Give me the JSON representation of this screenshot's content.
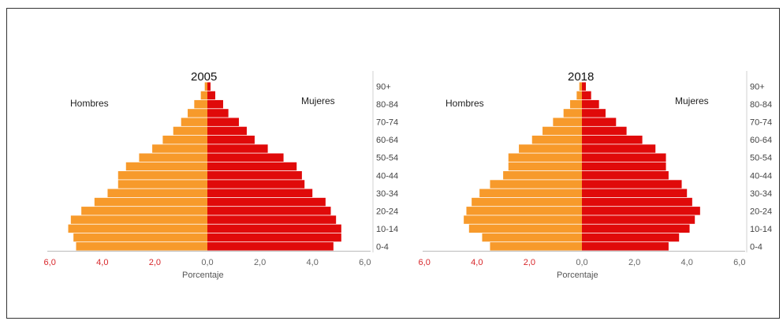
{
  "chart_data": [
    {
      "type": "bar",
      "title": "2005",
      "left_label": "Hombres",
      "right_label": "Mujeres",
      "xlabel": "Porcentaje",
      "xlim": [
        -6,
        6
      ],
      "x_ticks": [
        "6,0",
        "4,0",
        "2,0",
        "0,0",
        "2,0",
        "4,0",
        "6,0"
      ],
      "categories": [
        "0-4",
        "5-9",
        "10-14",
        "15-19",
        "20-24",
        "25-29",
        "30-34",
        "35-39",
        "40-44",
        "45-49",
        "50-54",
        "55-59",
        "60-64",
        "65-69",
        "70-74",
        "75-79",
        "80-84",
        "85-89",
        "90+"
      ],
      "category_labels": [
        "0-4",
        "",
        "10-14",
        "",
        "20-24",
        "",
        "30-34",
        "",
        "40-44",
        "",
        "50-54",
        "",
        "60-64",
        "",
        "70-74",
        "",
        "80-84",
        "",
        "90+"
      ],
      "series": [
        {
          "name": "Hombres",
          "color": "#f79a2b",
          "values": [
            5.0,
            5.1,
            5.3,
            5.2,
            4.8,
            4.3,
            3.8,
            3.4,
            3.4,
            3.1,
            2.6,
            2.1,
            1.7,
            1.3,
            1.0,
            0.75,
            0.5,
            0.25,
            0.1
          ]
        },
        {
          "name": "Mujeres",
          "color": "#e00a0a",
          "values": [
            4.8,
            5.1,
            5.1,
            4.9,
            4.7,
            4.5,
            4.0,
            3.7,
            3.6,
            3.4,
            2.9,
            2.3,
            1.8,
            1.5,
            1.2,
            0.8,
            0.6,
            0.3,
            0.12
          ]
        }
      ]
    },
    {
      "type": "bar",
      "title": "2018",
      "left_label": "Hombres",
      "right_label": "Mujeres",
      "xlabel": "Porcentaje",
      "xlim": [
        -6,
        6
      ],
      "x_ticks": [
        "6,0",
        "4,0",
        "2,0",
        "0,0",
        "2,0",
        "4,0",
        "6,0"
      ],
      "categories": [
        "0-4",
        "5-9",
        "10-14",
        "15-19",
        "20-24",
        "25-29",
        "30-34",
        "35-39",
        "40-44",
        "45-49",
        "50-54",
        "55-59",
        "60-64",
        "65-69",
        "70-74",
        "75-79",
        "80-84",
        "85-89",
        "90+"
      ],
      "category_labels": [
        "0-4",
        "",
        "10-14",
        "",
        "20-24",
        "",
        "30-34",
        "",
        "40-44",
        "",
        "50-54",
        "",
        "60-64",
        "",
        "70-74",
        "",
        "80-84",
        "",
        "90+"
      ],
      "series": [
        {
          "name": "Hombres",
          "color": "#f79a2b",
          "values": [
            3.5,
            3.8,
            4.3,
            4.5,
            4.4,
            4.2,
            3.9,
            3.5,
            3.0,
            2.8,
            2.8,
            2.4,
            1.9,
            1.5,
            1.1,
            0.7,
            0.45,
            0.2,
            0.1
          ]
        },
        {
          "name": "Mujeres",
          "color": "#e00a0a",
          "values": [
            3.3,
            3.7,
            4.1,
            4.3,
            4.5,
            4.2,
            4.0,
            3.8,
            3.3,
            3.2,
            3.2,
            2.8,
            2.3,
            1.7,
            1.3,
            0.9,
            0.65,
            0.35,
            0.15
          ]
        }
      ]
    }
  ],
  "colors": {
    "male": "#f79a2b",
    "female": "#e00a0a",
    "tick_red": "#d8262a",
    "tick_grey": "#666666"
  }
}
